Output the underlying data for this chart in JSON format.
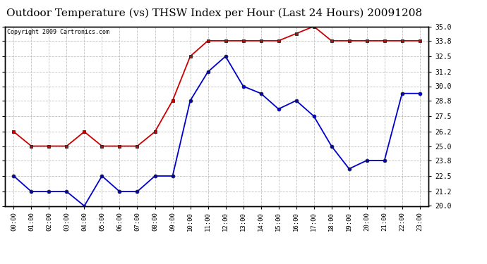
{
  "title": "Outdoor Temperature (vs) THSW Index per Hour (Last 24 Hours) 20091208",
  "copyright": "Copyright 2009 Cartronics.com",
  "x_labels": [
    "00:00",
    "01:00",
    "02:00",
    "03:00",
    "04:00",
    "05:00",
    "06:00",
    "07:00",
    "08:00",
    "09:00",
    "10:00",
    "11:00",
    "12:00",
    "13:00",
    "14:00",
    "15:00",
    "16:00",
    "17:00",
    "18:00",
    "19:00",
    "20:00",
    "21:00",
    "22:00",
    "23:00"
  ],
  "thsw_data": [
    26.2,
    25.0,
    25.0,
    25.0,
    26.2,
    25.0,
    25.0,
    25.0,
    26.2,
    28.8,
    32.5,
    33.8,
    33.8,
    33.8,
    33.8,
    33.8,
    34.4,
    35.0,
    33.8,
    33.8,
    33.8,
    33.8,
    33.8,
    33.8
  ],
  "temp_data": [
    22.5,
    21.2,
    21.2,
    21.2,
    20.0,
    22.5,
    21.2,
    21.2,
    22.5,
    22.5,
    28.8,
    31.2,
    32.5,
    30.0,
    29.4,
    28.1,
    28.8,
    27.5,
    25.0,
    23.1,
    23.8,
    23.8,
    29.4,
    29.4
  ],
  "ylim_min": 20.0,
  "ylim_max": 35.0,
  "yticks": [
    20.0,
    21.2,
    22.5,
    23.8,
    25.0,
    26.2,
    27.5,
    28.8,
    30.0,
    31.2,
    32.5,
    33.8,
    35.0
  ],
  "thsw_color": "#cc0000",
  "temp_color": "#0000cc",
  "bg_color": "#ffffff",
  "grid_color": "#bbbbbb",
  "title_fontsize": 12,
  "copyright_fontsize": 6.5
}
